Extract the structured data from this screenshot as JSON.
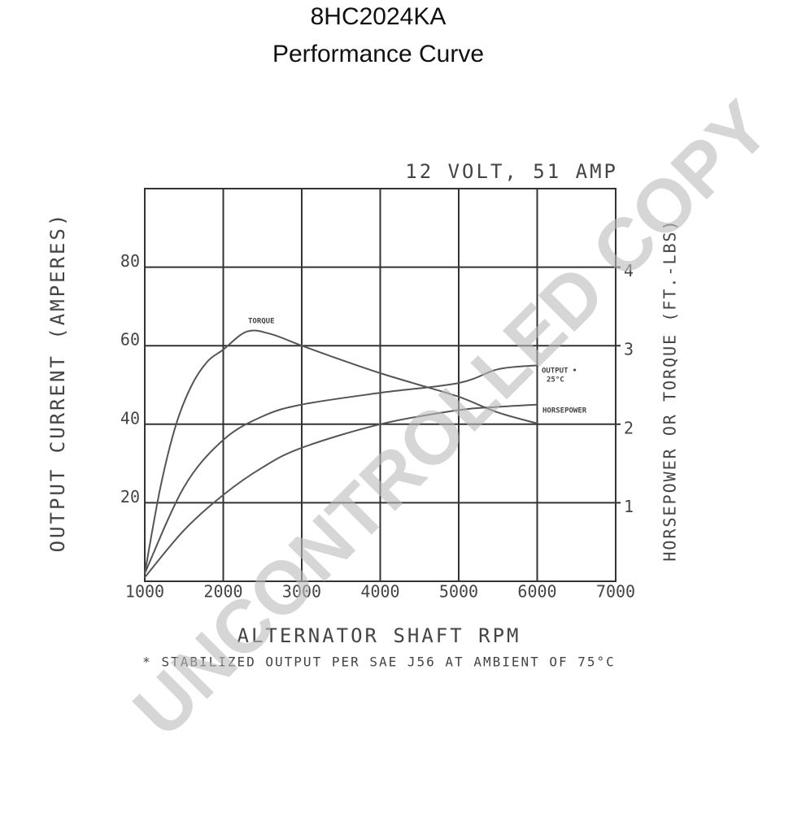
{
  "chart_data": {
    "type": "line",
    "title": "8HC2024KA",
    "subtitle": "Performance Curve",
    "heading": "12 VOLT, 51 AMP",
    "y_label": "OUTPUT CURRENT (AMPERES)",
    "y2_label": "HORSEPOWER OR TORQUE (FT.-LBS)",
    "x_label": "ALTERNATOR SHAFT RPM",
    "footnote": "* STABILIZED OUTPUT PER SAE J56 AT AMBIENT OF 75°C",
    "annotation": "25°C",
    "watermark": "UNCONTROLLED COPY",
    "xlim": [
      1000,
      7000
    ],
    "xticks": [
      1000,
      2000,
      3000,
      4000,
      5000,
      6000,
      7000
    ],
    "ylim": [
      0,
      100
    ],
    "yticks": [
      20,
      40,
      60,
      80
    ],
    "y2lim": [
      0,
      5
    ],
    "y2ticks": [
      1,
      2,
      3,
      4
    ],
    "grid": true,
    "series": [
      {
        "name": "TORQUE",
        "color": "#555555",
        "axis": "y2",
        "x": [
          1000,
          1200,
          1400,
          1600,
          1800,
          2000,
          2300,
          2600,
          3000,
          3500,
          4000,
          4500,
          5000,
          5500,
          6000
        ],
        "values": [
          0.1,
          1.2,
          2.0,
          2.5,
          2.8,
          2.95,
          3.18,
          3.15,
          3.0,
          2.82,
          2.65,
          2.5,
          2.35,
          2.15,
          2.01
        ]
      },
      {
        "name": "OUTPUT •",
        "color": "#555555",
        "x": [
          1000,
          1500,
          2000,
          2500,
          3000,
          4000,
          5000,
          5500,
          6000
        ],
        "values": [
          2,
          24,
          36,
          42,
          45,
          48,
          50.5,
          54,
          55
        ]
      },
      {
        "name": "HORSEPOWER",
        "color": "#555555",
        "axis": "y2",
        "x": [
          1000,
          1500,
          2000,
          2500,
          3000,
          4000,
          5000,
          5500,
          6000
        ],
        "values": [
          0.05,
          0.65,
          1.1,
          1.45,
          1.7,
          2.0,
          2.18,
          2.22,
          2.25
        ]
      }
    ]
  }
}
